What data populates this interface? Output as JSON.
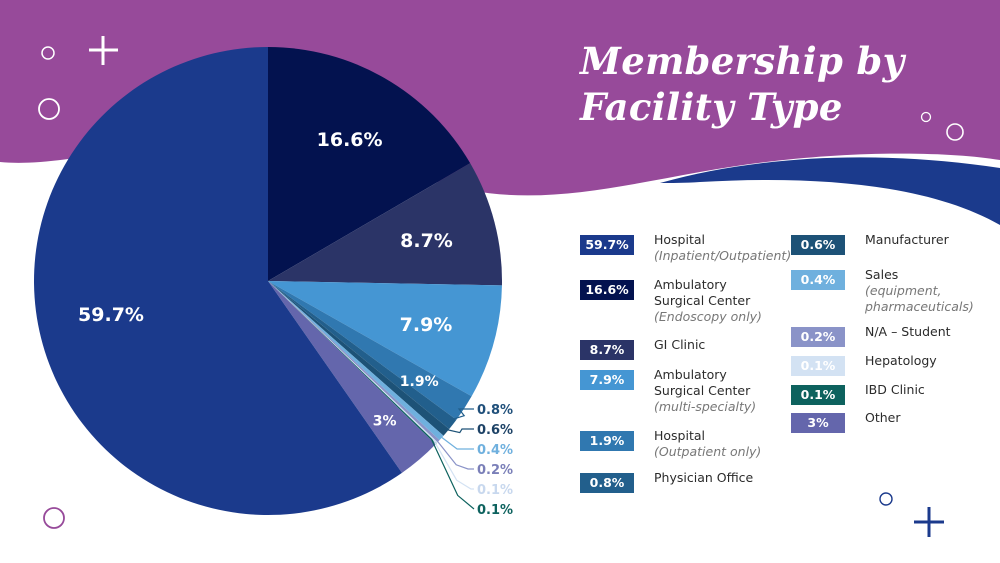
{
  "title_line1": "Membership by",
  "title_line2": "Facility Type",
  "colors": {
    "background_purple": "#974a9a",
    "wave_blue": "#1b3a8c",
    "accent_plus_white": "#ffffff",
    "accent_plus_navy": "#1b3a8c"
  },
  "chart_data": {
    "type": "pie",
    "title": "Membership by Facility Type",
    "start_angle": "12 o'clock, clockwise",
    "slices": [
      {
        "label": "Ambulatory Surgical Center",
        "sublabel": "(Endoscopy only)",
        "value": 16.6,
        "display": "16.6%",
        "color": "#03124f",
        "label_color": "#ffffff"
      },
      {
        "label": "GI Clinic",
        "sublabel": "",
        "value": 8.7,
        "display": "8.7%",
        "color": "#2b3467",
        "label_color": "#ffffff"
      },
      {
        "label": "Ambulatory Surgical Center",
        "sublabel": "(multi-specialty)",
        "value": 7.9,
        "display": "7.9%",
        "color": "#4596d3",
        "label_color": "#ffffff"
      },
      {
        "label": "Hospital",
        "sublabel": "(Outpatient only)",
        "value": 1.9,
        "display": "1.9%",
        "color": "#3078b0",
        "label_color": "#ffffff"
      },
      {
        "label": "Physician Office",
        "sublabel": "",
        "value": 0.8,
        "display": "0.8%",
        "color": "#225f8c",
        "label_color": "#1f4f7a"
      },
      {
        "label": "Manufacturer",
        "sublabel": "",
        "value": 0.6,
        "display": "0.6%",
        "color": "#1d5277",
        "label_color": "#1d4266"
      },
      {
        "label": "Sales",
        "sublabel": "(equipment, pharmaceuticals)",
        "value": 0.4,
        "display": "0.4%",
        "color": "#6fb0de",
        "label_color": "#6fb0de"
      },
      {
        "label": "N/A – Student",
        "sublabel": "",
        "value": 0.2,
        "display": "0.2%",
        "color": "#8a93c8",
        "label_color": "#7a7fb8"
      },
      {
        "label": "Hepatology",
        "sublabel": "",
        "value": 0.1,
        "display": "0.1%",
        "color": "#d3e2f3",
        "label_color": "#c8d8ee"
      },
      {
        "label": "IBD Clinic",
        "sublabel": "",
        "value": 0.1,
        "display": "0.1%",
        "color": "#0d625e",
        "label_color": "#0d625e"
      },
      {
        "label": "Other",
        "sublabel": "",
        "value": 3,
        "display": "3%",
        "color": "#6466ac",
        "label_color": "#ffffff"
      },
      {
        "label": "Hospital",
        "sublabel": "(Inpatient/Outpatient)",
        "value": 59.7,
        "display": "59.7%",
        "color": "#1b3a8c",
        "label_color": "#ffffff"
      }
    ]
  },
  "legend": {
    "left": [
      {
        "badge": "59.7%",
        "label": "Hospital",
        "sub": "(Inpatient/Outpatient)",
        "color": "#1b3a8c",
        "text_color": "#ffffff"
      },
      {
        "badge": "16.6%",
        "label": "Ambulatory Surgical Center",
        "sub": "(Endoscopy only)",
        "color": "#03124f",
        "text_color": "#ffffff"
      },
      {
        "badge": "8.7%",
        "label": "GI Clinic",
        "sub": "",
        "color": "#2b3467",
        "text_color": "#ffffff"
      },
      {
        "badge": "7.9%",
        "label": "Ambulatory Surgical Center",
        "sub": "(multi-specialty)",
        "color": "#4596d3",
        "text_color": "#ffffff"
      },
      {
        "badge": "1.9%",
        "label": "Hospital",
        "sub": "(Outpatient only)",
        "color": "#3078b0",
        "text_color": "#ffffff"
      },
      {
        "badge": "0.8%",
        "label": "Physician Office",
        "sub": "",
        "color": "#225f8c",
        "text_color": "#ffffff"
      }
    ],
    "right": [
      {
        "badge": "0.6%",
        "label": "Manufacturer",
        "sub": "",
        "color": "#1d5277",
        "text_color": "#ffffff"
      },
      {
        "badge": "0.4%",
        "label": "Sales",
        "sub": "(equipment, pharmaceuticals)",
        "color": "#6fb0de",
        "text_color": "#ffffff"
      },
      {
        "badge": "0.2%",
        "label": "N/A – Student",
        "sub": "",
        "color": "#8a93c8",
        "text_color": "#ffffff"
      },
      {
        "badge": "0.1%",
        "label": "Hepatology",
        "sub": "",
        "color": "#d3e2f3",
        "text_color": "#ffffff"
      },
      {
        "badge": "0.1%",
        "label": "IBD Clinic",
        "sub": "",
        "color": "#0d625e",
        "text_color": "#ffffff"
      },
      {
        "badge": "3%",
        "label": "Other",
        "sub": "",
        "color": "#6466ac",
        "text_color": "#ffffff"
      }
    ]
  }
}
